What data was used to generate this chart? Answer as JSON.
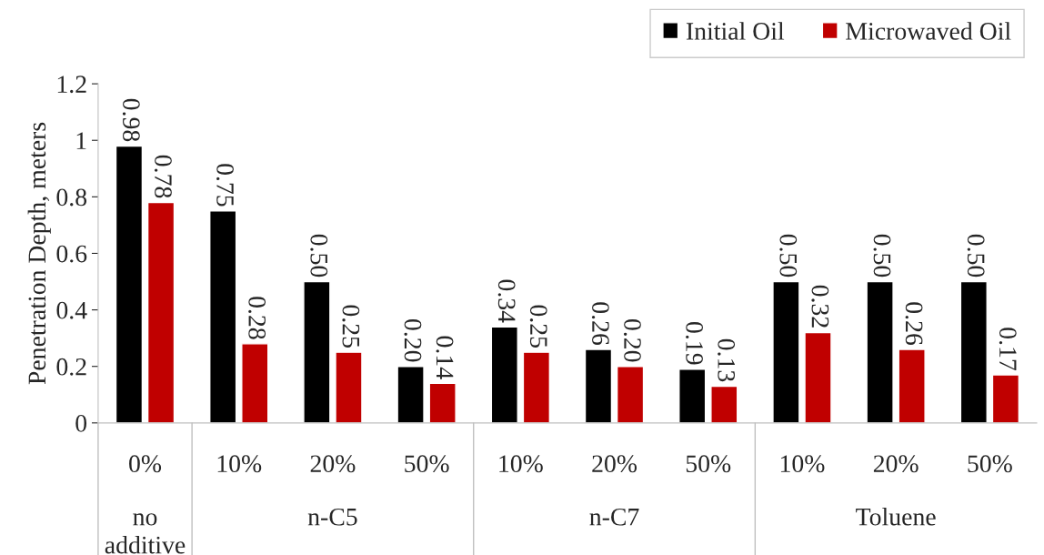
{
  "chart_data": {
    "type": "bar",
    "ylabel": "Penetration Depth, meters",
    "categories": [
      "0%",
      "10%",
      "20%",
      "50%",
      "10%",
      "20%",
      "50%",
      "10%",
      "20%",
      "50%"
    ],
    "annotations": [
      "no\nadditive",
      "n-C5",
      "n-C7",
      "Toluene"
    ],
    "series": [
      {
        "name": "Initial Oil",
        "color": "#000000",
        "values": [
          0.98,
          0.75,
          0.5,
          0.2,
          0.34,
          0.26,
          0.19,
          0.5,
          0.5,
          0.5
        ],
        "value_labels": [
          "0.98",
          "0.75",
          "0.50",
          "0.20",
          "0.34",
          "0.26",
          "0.19",
          "0.50",
          "0.50",
          "0.50"
        ]
      },
      {
        "name": "Microwaved Oil",
        "color": "#c00000",
        "values": [
          0.78,
          0.28,
          0.25,
          0.14,
          0.25,
          0.2,
          0.13,
          0.32,
          0.26,
          0.17
        ],
        "value_labels": [
          "0.78",
          "0.28",
          "0.25",
          "0.14",
          "0.25",
          "0.20",
          "0.13",
          "0.32",
          "0.26",
          "0.17"
        ]
      }
    ],
    "ylim": [
      0,
      1.2
    ],
    "yticks": [
      0,
      0.2,
      0.4,
      0.6,
      0.8,
      {
        "value": 1,
        "label": "1"
      },
      1.2
    ],
    "legend": "top right",
    "grid": false
  }
}
